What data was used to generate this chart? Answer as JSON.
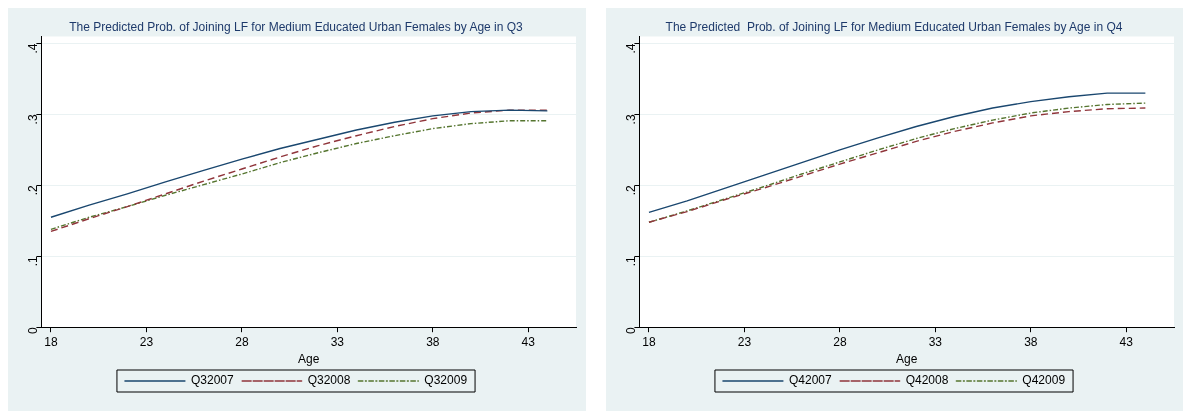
{
  "chart_data": [
    {
      "type": "line",
      "title": "The Predicted Prob. of Joining LF for Medium Educated Urban Females by Age in Q3",
      "xlabel": "Age",
      "x": [
        18,
        20,
        22,
        24,
        26,
        28,
        30,
        32,
        34,
        36,
        38,
        40,
        42,
        44
      ],
      "xlim": [
        17.5,
        45.5
      ],
      "xticks": [
        18,
        23,
        28,
        33,
        38,
        43
      ],
      "ylim": [
        0,
        0.41
      ],
      "yticks": [
        0,
        {
          "value": 0.1,
          "label": ".1"
        },
        {
          "value": 0.2,
          "label": ".2"
        },
        {
          "value": 0.3,
          "label": ".3"
        },
        {
          "value": 0.4,
          "label": ".4"
        }
      ],
      "grid": "y",
      "legend": "bottom",
      "marker": "none",
      "series": [
        {
          "name": "Q32007",
          "color": "#1a476f",
          "line_style": "solid",
          "values": [
            0.155,
            0.172,
            0.188,
            0.205,
            0.221,
            0.237,
            0.252,
            0.265,
            0.278,
            0.289,
            0.298,
            0.304,
            0.306,
            0.305
          ]
        },
        {
          "name": "Q32008",
          "color": "#90353b",
          "line_style": "dashed",
          "values": [
            0.135,
            0.153,
            0.17,
            0.188,
            0.206,
            0.223,
            0.24,
            0.256,
            0.27,
            0.283,
            0.294,
            0.302,
            0.306,
            0.306
          ]
        },
        {
          "name": "Q32009",
          "color": "#55752f",
          "line_style": "dashdot",
          "values": [
            0.138,
            0.155,
            0.17,
            0.186,
            0.201,
            0.216,
            0.232,
            0.246,
            0.259,
            0.27,
            0.28,
            0.287,
            0.291,
            0.291
          ]
        }
      ]
    },
    {
      "type": "line",
      "title": "The Predicted  Prob. of Joining LF for Medium Educated Urban Females by Age in Q4",
      "xlabel": "Age",
      "x": [
        18,
        20,
        22,
        24,
        26,
        28,
        30,
        32,
        34,
        36,
        38,
        40,
        42,
        44
      ],
      "xlim": [
        17.5,
        45.5
      ],
      "xticks": [
        18,
        23,
        28,
        33,
        38,
        43
      ],
      "ylim": [
        0,
        0.41
      ],
      "yticks": [
        0,
        {
          "value": 0.1,
          "label": ".1"
        },
        {
          "value": 0.2,
          "label": ".2"
        },
        {
          "value": 0.3,
          "label": ".3"
        },
        {
          "value": 0.4,
          "label": ".4"
        }
      ],
      "grid": "y",
      "legend": "bottom",
      "marker": "none",
      "series": [
        {
          "name": "Q42007",
          "color": "#1a476f",
          "line_style": "solid",
          "values": [
            0.162,
            0.178,
            0.196,
            0.214,
            0.232,
            0.25,
            0.267,
            0.283,
            0.297,
            0.309,
            0.318,
            0.325,
            0.33,
            0.33
          ]
        },
        {
          "name": "Q42008",
          "color": "#90353b",
          "line_style": "dashed",
          "values": [
            0.148,
            0.163,
            0.18,
            0.196,
            0.213,
            0.23,
            0.246,
            0.262,
            0.276,
            0.288,
            0.298,
            0.304,
            0.308,
            0.309
          ]
        },
        {
          "name": "Q42009",
          "color": "#55752f",
          "line_style": "dashdot",
          "values": [
            0.148,
            0.164,
            0.181,
            0.198,
            0.216,
            0.233,
            0.25,
            0.266,
            0.28,
            0.292,
            0.302,
            0.309,
            0.314,
            0.316
          ]
        }
      ]
    }
  ]
}
